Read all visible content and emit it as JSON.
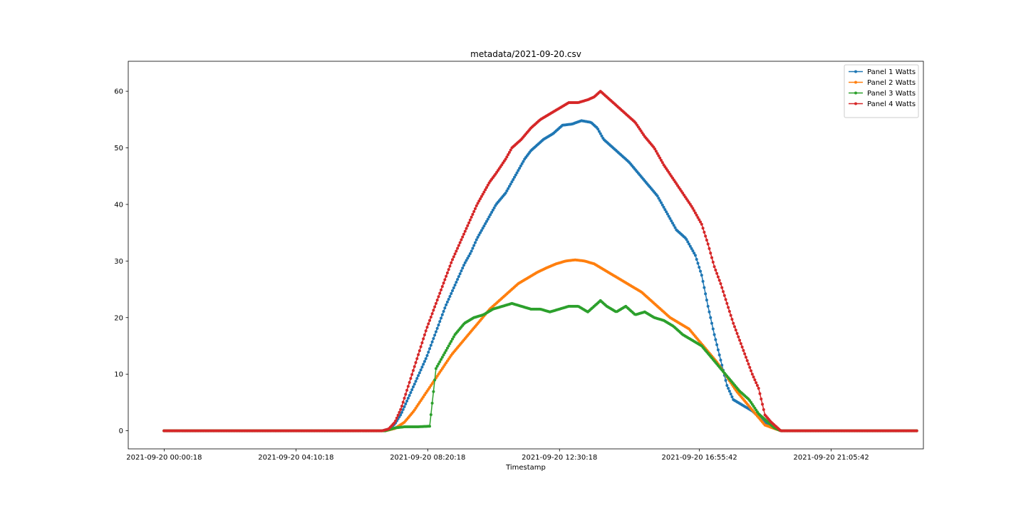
{
  "chart_data": {
    "type": "line",
    "title": "metadata/2021-09-20.csv",
    "xlabel": "Timestamp",
    "ylabel": "",
    "x_unit": "hours since 2021-09-20 00:00",
    "xlim": [
      -1.13,
      24.01
    ],
    "ylim": [
      -3.2,
      65.3
    ],
    "x_ticks": [
      {
        "x": 0.005,
        "label": "2021-09-20 00:00:18"
      },
      {
        "x": 4.172,
        "label": "2021-09-20 04:10:18"
      },
      {
        "x": 8.338,
        "label": "2021-09-20 08:20:18"
      },
      {
        "x": 12.505,
        "label": "2021-09-20 12:30:18"
      },
      {
        "x": 16.928,
        "label": "2021-09-20 16:55:42"
      },
      {
        "x": 21.095,
        "label": "2021-09-20 21:05:42"
      }
    ],
    "y_ticks": [
      0,
      10,
      20,
      30,
      40,
      50,
      60
    ],
    "legend_position": "top-right",
    "marker": "dot",
    "series": [
      {
        "name": "Panel 1 Watts",
        "color": "#1f77b4",
        "points": [
          [
            0,
            0
          ],
          [
            6.9,
            0
          ],
          [
            7.1,
            0.3
          ],
          [
            7.3,
            1.2
          ],
          [
            7.5,
            3
          ],
          [
            7.7,
            5.5
          ],
          [
            7.9,
            8
          ],
          [
            8.1,
            10.5
          ],
          [
            8.3,
            13
          ],
          [
            8.5,
            16
          ],
          [
            8.7,
            19
          ],
          [
            8.9,
            22
          ],
          [
            9.1,
            24.5
          ],
          [
            9.3,
            27
          ],
          [
            9.5,
            29.5
          ],
          [
            9.7,
            31.5
          ],
          [
            9.9,
            34
          ],
          [
            10.1,
            36
          ],
          [
            10.3,
            38
          ],
          [
            10.5,
            40
          ],
          [
            10.8,
            42
          ],
          [
            11.0,
            44
          ],
          [
            11.2,
            46
          ],
          [
            11.4,
            48
          ],
          [
            11.6,
            49.5
          ],
          [
            11.8,
            50.5
          ],
          [
            12.0,
            51.5
          ],
          [
            12.3,
            52.5
          ],
          [
            12.6,
            54
          ],
          [
            12.9,
            54.2
          ],
          [
            13.2,
            54.8
          ],
          [
            13.5,
            54.5
          ],
          [
            13.7,
            53.5
          ],
          [
            13.9,
            51.5
          ],
          [
            14.1,
            50.5
          ],
          [
            14.4,
            49
          ],
          [
            14.7,
            47.5
          ],
          [
            15.0,
            45.5
          ],
          [
            15.3,
            43.5
          ],
          [
            15.6,
            41.5
          ],
          [
            15.9,
            38.5
          ],
          [
            16.2,
            35.5
          ],
          [
            16.5,
            34
          ],
          [
            16.8,
            31
          ],
          [
            17.0,
            27.5
          ],
          [
            17.2,
            22
          ],
          [
            17.4,
            17
          ],
          [
            17.6,
            12.5
          ],
          [
            17.8,
            8
          ],
          [
            18.0,
            5.5
          ],
          [
            18.3,
            4.5
          ],
          [
            18.6,
            3.5
          ],
          [
            18.8,
            2.5
          ],
          [
            19.0,
            1.5
          ],
          [
            19.2,
            0.8
          ],
          [
            19.4,
            0.3
          ],
          [
            19.5,
            0
          ],
          [
            23.8,
            0
          ]
        ]
      },
      {
        "name": "Panel 2 Watts",
        "color": "#ff7f0e",
        "points": [
          [
            0,
            0
          ],
          [
            7.0,
            0
          ],
          [
            7.3,
            0.4
          ],
          [
            7.6,
            1.5
          ],
          [
            7.9,
            3.5
          ],
          [
            8.2,
            6
          ],
          [
            8.5,
            8.5
          ],
          [
            8.8,
            11
          ],
          [
            9.1,
            13.5
          ],
          [
            9.4,
            15.5
          ],
          [
            9.7,
            17.5
          ],
          [
            10.0,
            19.5
          ],
          [
            10.3,
            21.5
          ],
          [
            10.6,
            23
          ],
          [
            10.9,
            24.5
          ],
          [
            11.2,
            26
          ],
          [
            11.5,
            27
          ],
          [
            11.8,
            28
          ],
          [
            12.1,
            28.8
          ],
          [
            12.4,
            29.5
          ],
          [
            12.7,
            30
          ],
          [
            13.0,
            30.2
          ],
          [
            13.3,
            30
          ],
          [
            13.6,
            29.5
          ],
          [
            13.9,
            28.5
          ],
          [
            14.2,
            27.5
          ],
          [
            14.5,
            26.5
          ],
          [
            14.8,
            25.5
          ],
          [
            15.1,
            24.5
          ],
          [
            15.4,
            23
          ],
          [
            15.7,
            21.5
          ],
          [
            16.0,
            20
          ],
          [
            16.3,
            19
          ],
          [
            16.6,
            18
          ],
          [
            16.9,
            16
          ],
          [
            17.2,
            14
          ],
          [
            17.5,
            12
          ],
          [
            17.8,
            9.5
          ],
          [
            18.1,
            7
          ],
          [
            18.4,
            5
          ],
          [
            18.7,
            3
          ],
          [
            19.0,
            1
          ],
          [
            19.3,
            0.4
          ],
          [
            19.5,
            0
          ],
          [
            23.8,
            0
          ]
        ]
      },
      {
        "name": "Panel 3 Watts",
        "color": "#2ca02c",
        "points": [
          [
            0,
            0
          ],
          [
            7.0,
            0
          ],
          [
            7.3,
            0.5
          ],
          [
            7.6,
            0.7
          ],
          [
            8.0,
            0.7
          ],
          [
            8.4,
            0.8
          ],
          [
            8.6,
            11
          ],
          [
            8.9,
            14
          ],
          [
            9.2,
            17
          ],
          [
            9.5,
            19
          ],
          [
            9.8,
            20
          ],
          [
            10.1,
            20.5
          ],
          [
            10.4,
            21.5
          ],
          [
            10.7,
            22
          ],
          [
            11.0,
            22.5
          ],
          [
            11.3,
            22
          ],
          [
            11.6,
            21.5
          ],
          [
            11.9,
            21.5
          ],
          [
            12.2,
            21
          ],
          [
            12.5,
            21.5
          ],
          [
            12.8,
            22
          ],
          [
            13.1,
            22
          ],
          [
            13.4,
            21
          ],
          [
            13.6,
            22
          ],
          [
            13.8,
            23
          ],
          [
            14.0,
            22
          ],
          [
            14.3,
            21
          ],
          [
            14.6,
            22
          ],
          [
            14.9,
            20.5
          ],
          [
            15.2,
            21
          ],
          [
            15.5,
            20
          ],
          [
            15.8,
            19.5
          ],
          [
            16.1,
            18.5
          ],
          [
            16.4,
            17
          ],
          [
            16.7,
            16
          ],
          [
            17.0,
            15
          ],
          [
            17.3,
            13
          ],
          [
            17.6,
            11
          ],
          [
            17.9,
            9
          ],
          [
            18.2,
            7
          ],
          [
            18.5,
            5.5
          ],
          [
            18.8,
            3
          ],
          [
            19.1,
            1.5
          ],
          [
            19.3,
            0.5
          ],
          [
            19.5,
            0
          ],
          [
            23.8,
            0
          ]
        ]
      },
      {
        "name": "Panel 4 Watts",
        "color": "#d62728",
        "points": [
          [
            0,
            0
          ],
          [
            6.9,
            0
          ],
          [
            7.1,
            0.3
          ],
          [
            7.3,
            1.5
          ],
          [
            7.5,
            4
          ],
          [
            7.7,
            7.5
          ],
          [
            7.9,
            11
          ],
          [
            8.1,
            14.5
          ],
          [
            8.3,
            18
          ],
          [
            8.5,
            21
          ],
          [
            8.7,
            24
          ],
          [
            8.9,
            27
          ],
          [
            9.1,
            30
          ],
          [
            9.3,
            32.5
          ],
          [
            9.5,
            35
          ],
          [
            9.7,
            37.5
          ],
          [
            9.9,
            40
          ],
          [
            10.1,
            42
          ],
          [
            10.3,
            44
          ],
          [
            10.5,
            45.5
          ],
          [
            10.8,
            48
          ],
          [
            11.0,
            50
          ],
          [
            11.3,
            51.5
          ],
          [
            11.6,
            53.5
          ],
          [
            11.9,
            55
          ],
          [
            12.2,
            56
          ],
          [
            12.5,
            57
          ],
          [
            12.8,
            58
          ],
          [
            13.1,
            58
          ],
          [
            13.4,
            58.5
          ],
          [
            13.6,
            59
          ],
          [
            13.8,
            60
          ],
          [
            14.0,
            59
          ],
          [
            14.3,
            57.5
          ],
          [
            14.6,
            56
          ],
          [
            14.9,
            54.5
          ],
          [
            15.2,
            52
          ],
          [
            15.5,
            50
          ],
          [
            15.8,
            47
          ],
          [
            16.1,
            44.5
          ],
          [
            16.4,
            42
          ],
          [
            16.7,
            39.5
          ],
          [
            17.0,
            36.5
          ],
          [
            17.2,
            33
          ],
          [
            17.4,
            29
          ],
          [
            17.6,
            26
          ],
          [
            17.8,
            22.5
          ],
          [
            18.0,
            19
          ],
          [
            18.2,
            16
          ],
          [
            18.4,
            13
          ],
          [
            18.6,
            10
          ],
          [
            18.8,
            7.5
          ],
          [
            19.0,
            2.8
          ],
          [
            19.2,
            1.5
          ],
          [
            19.4,
            0.5
          ],
          [
            19.5,
            0
          ],
          [
            23.8,
            0
          ]
        ]
      }
    ]
  }
}
